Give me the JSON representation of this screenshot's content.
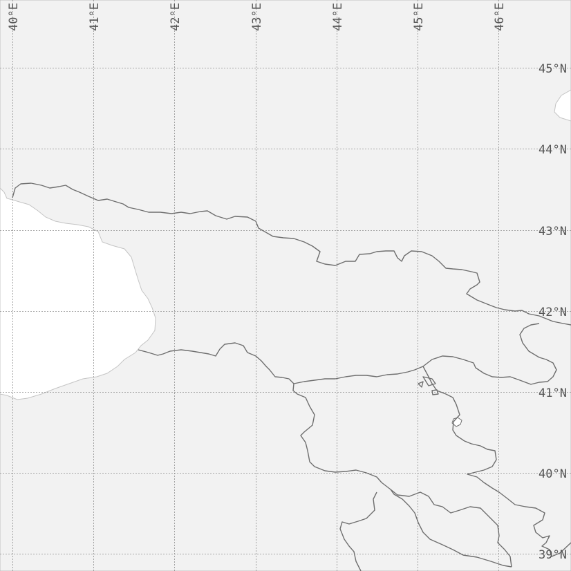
{
  "map": {
    "colors": {
      "land": "#f2f2f2",
      "water": "#ffffff",
      "grid": "#8c8c8c",
      "border": "#6e6e6e",
      "coast": "#c4c4c4",
      "labels": "#555555"
    },
    "longitude_labels": [
      "40°E",
      "41°E",
      "42°E",
      "43°E",
      "44°E",
      "45°E",
      "46°E"
    ],
    "latitude_labels": [
      "45°N",
      "44°N",
      "43°N",
      "42°N",
      "41°N",
      "40°N",
      "39°N"
    ]
  }
}
